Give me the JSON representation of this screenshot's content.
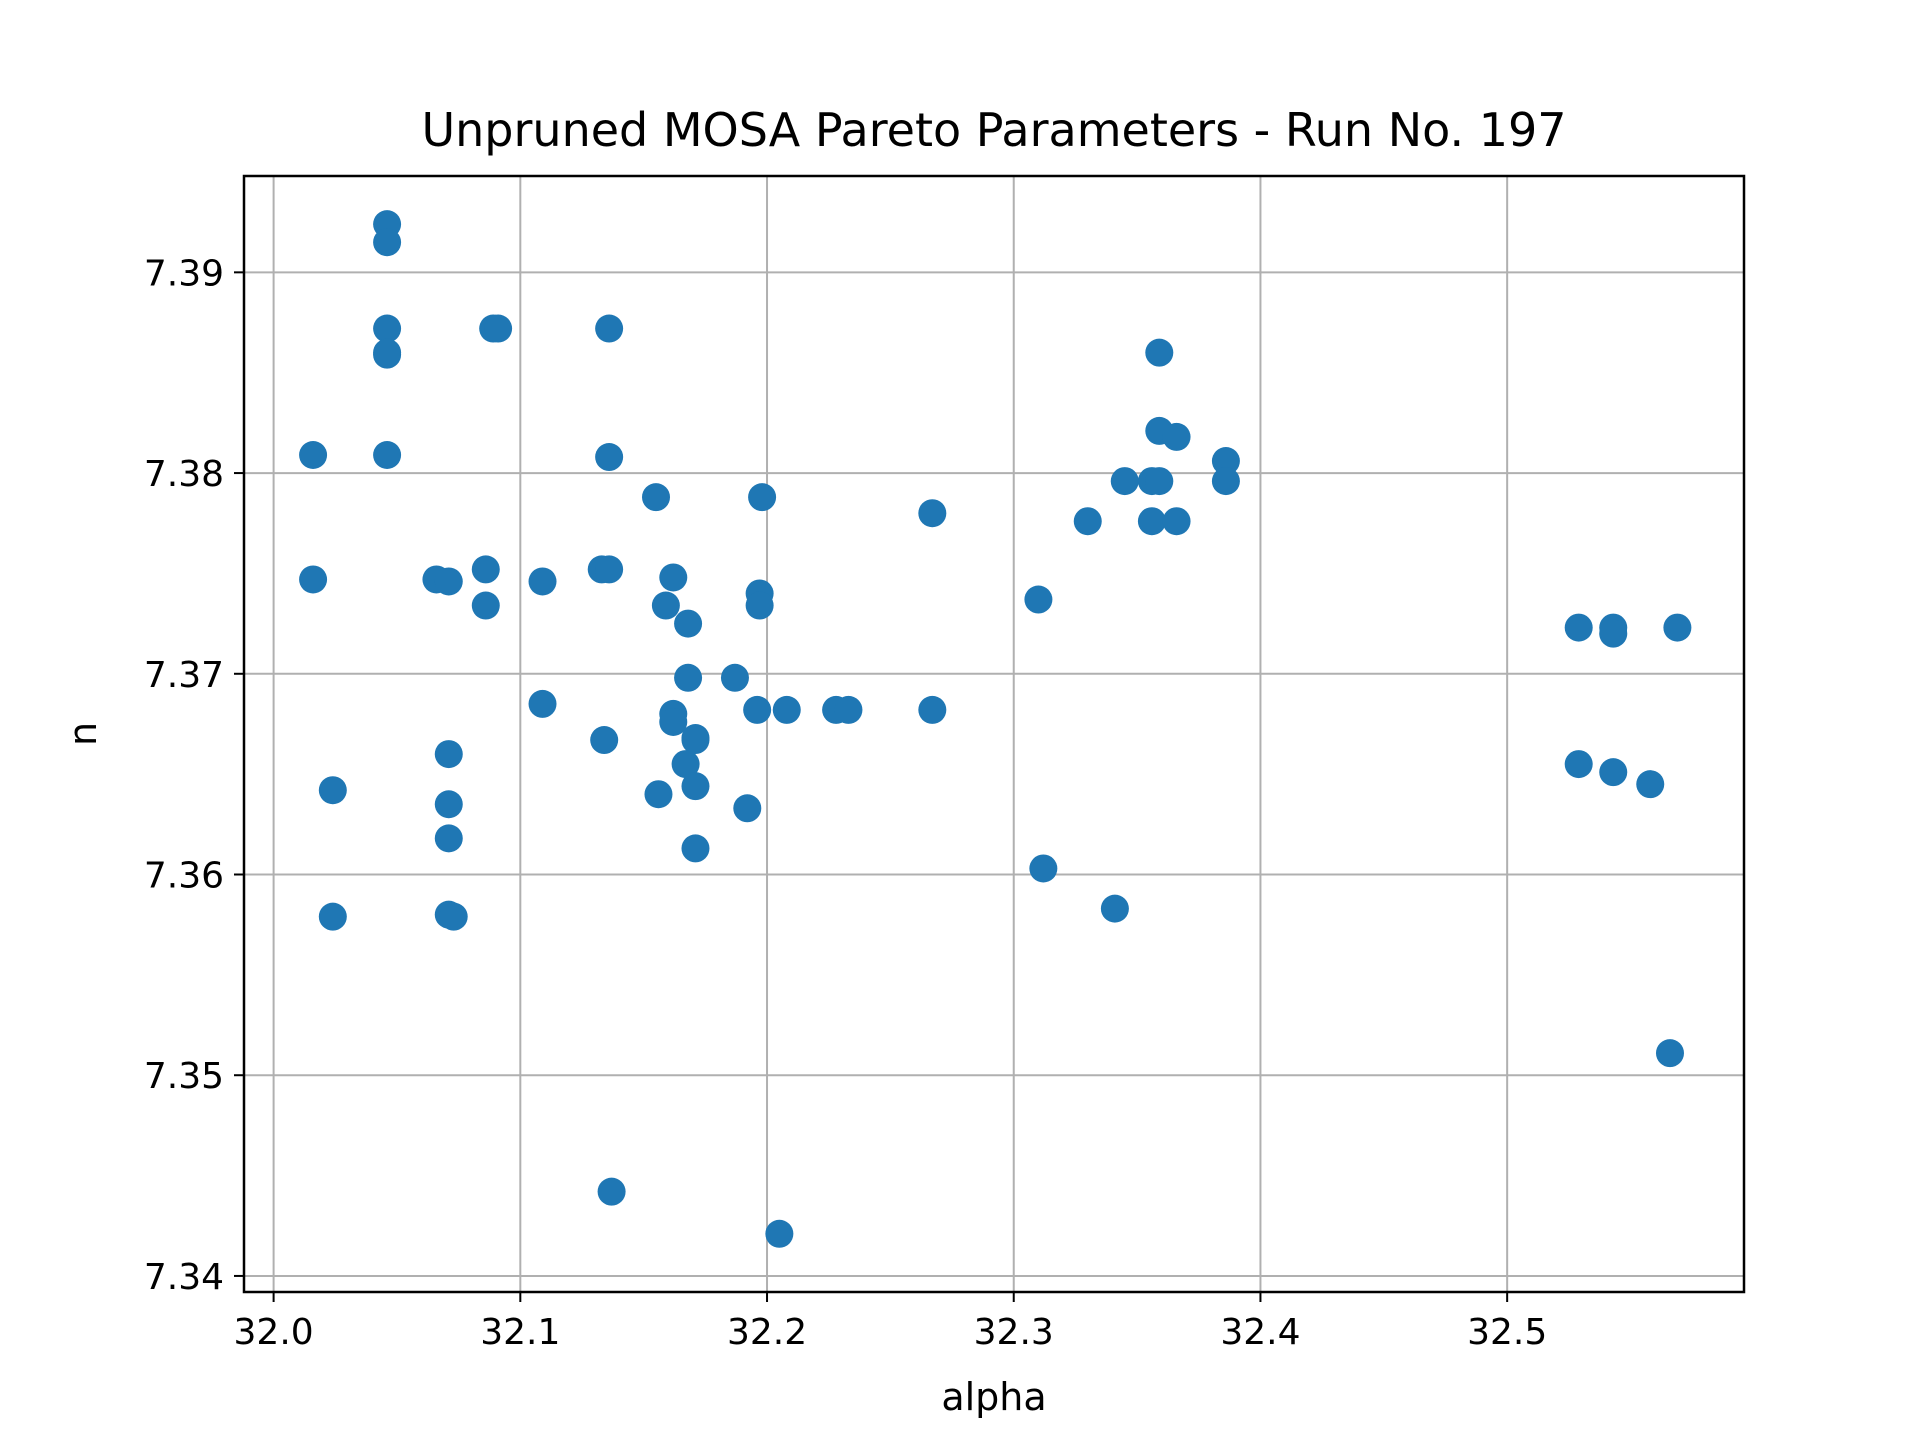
{
  "chart_data": {
    "type": "scatter",
    "title": "Unpruned MOSA Pareto Parameters - Run No. 197",
    "xlabel": "alpha",
    "ylabel": "n",
    "xlim": [
      31.988,
      32.596
    ],
    "ylim": [
      7.3392,
      7.3948
    ],
    "xticks": [
      32.0,
      32.1,
      32.2,
      32.3,
      32.4,
      32.5
    ],
    "xtick_labels": [
      "32.0",
      "32.1",
      "32.2",
      "32.3",
      "32.4",
      "32.5"
    ],
    "yticks": [
      7.34,
      7.35,
      7.36,
      7.37,
      7.38,
      7.39
    ],
    "ytick_labels": [
      "7.34",
      "7.35",
      "7.36",
      "7.37",
      "7.38",
      "7.39"
    ],
    "grid": true,
    "marker_color": "#1f77b4",
    "points": [
      {
        "x": 32.046,
        "y": 7.3924
      },
      {
        "x": 32.046,
        "y": 7.3915
      },
      {
        "x": 32.046,
        "y": 7.3872
      },
      {
        "x": 32.046,
        "y": 7.3859
      },
      {
        "x": 32.046,
        "y": 7.386
      },
      {
        "x": 32.046,
        "y": 7.3809
      },
      {
        "x": 32.016,
        "y": 7.3809
      },
      {
        "x": 32.016,
        "y": 7.3747
      },
      {
        "x": 32.024,
        "y": 7.3642
      },
      {
        "x": 32.024,
        "y": 7.3579
      },
      {
        "x": 32.089,
        "y": 7.3872
      },
      {
        "x": 32.091,
        "y": 7.3872
      },
      {
        "x": 32.136,
        "y": 7.3872
      },
      {
        "x": 32.136,
        "y": 7.3808
      },
      {
        "x": 32.066,
        "y": 7.3747
      },
      {
        "x": 32.071,
        "y": 7.3746
      },
      {
        "x": 32.086,
        "y": 7.3752
      },
      {
        "x": 32.086,
        "y": 7.3734
      },
      {
        "x": 32.109,
        "y": 7.3746
      },
      {
        "x": 32.133,
        "y": 7.3752
      },
      {
        "x": 32.136,
        "y": 7.3752
      },
      {
        "x": 32.071,
        "y": 7.366
      },
      {
        "x": 32.071,
        "y": 7.3635
      },
      {
        "x": 32.071,
        "y": 7.3618
      },
      {
        "x": 32.071,
        "y": 7.358
      },
      {
        "x": 32.073,
        "y": 7.3579
      },
      {
        "x": 32.109,
        "y": 7.3685
      },
      {
        "x": 32.134,
        "y": 7.3667
      },
      {
        "x": 32.137,
        "y": 7.3442
      },
      {
        "x": 32.155,
        "y": 7.3788
      },
      {
        "x": 32.159,
        "y": 7.3734
      },
      {
        "x": 32.162,
        "y": 7.3748
      },
      {
        "x": 32.168,
        "y": 7.3725
      },
      {
        "x": 32.168,
        "y": 7.3698
      },
      {
        "x": 32.162,
        "y": 7.368
      },
      {
        "x": 32.162,
        "y": 7.3676
      },
      {
        "x": 32.171,
        "y": 7.3668
      },
      {
        "x": 32.171,
        "y": 7.3667
      },
      {
        "x": 32.167,
        "y": 7.3655
      },
      {
        "x": 32.156,
        "y": 7.364
      },
      {
        "x": 32.171,
        "y": 7.3644
      },
      {
        "x": 32.171,
        "y": 7.3613
      },
      {
        "x": 32.198,
        "y": 7.3788
      },
      {
        "x": 32.197,
        "y": 7.374
      },
      {
        "x": 32.197,
        "y": 7.3734
      },
      {
        "x": 32.187,
        "y": 7.3698
      },
      {
        "x": 32.196,
        "y": 7.3682
      },
      {
        "x": 32.208,
        "y": 7.3682
      },
      {
        "x": 32.192,
        "y": 7.3633
      },
      {
        "x": 32.205,
        "y": 7.3421
      },
      {
        "x": 32.228,
        "y": 7.3682
      },
      {
        "x": 32.233,
        "y": 7.3682
      },
      {
        "x": 32.267,
        "y": 7.378
      },
      {
        "x": 32.267,
        "y": 7.3682
      },
      {
        "x": 32.31,
        "y": 7.3737
      },
      {
        "x": 32.312,
        "y": 7.3603
      },
      {
        "x": 32.33,
        "y": 7.3776
      },
      {
        "x": 32.341,
        "y": 7.3583
      },
      {
        "x": 32.345,
        "y": 7.3796
      },
      {
        "x": 32.356,
        "y": 7.3796
      },
      {
        "x": 32.359,
        "y": 7.3796
      },
      {
        "x": 32.356,
        "y": 7.3776
      },
      {
        "x": 32.359,
        "y": 7.386
      },
      {
        "x": 32.359,
        "y": 7.3821
      },
      {
        "x": 32.366,
        "y": 7.3818
      },
      {
        "x": 32.366,
        "y": 7.3776
      },
      {
        "x": 32.386,
        "y": 7.3806
      },
      {
        "x": 32.386,
        "y": 7.3796
      },
      {
        "x": 32.529,
        "y": 7.3723
      },
      {
        "x": 32.543,
        "y": 7.3723
      },
      {
        "x": 32.543,
        "y": 7.372
      },
      {
        "x": 32.569,
        "y": 7.3723
      },
      {
        "x": 32.529,
        "y": 7.3655
      },
      {
        "x": 32.543,
        "y": 7.3651
      },
      {
        "x": 32.558,
        "y": 7.3645
      },
      {
        "x": 32.566,
        "y": 7.3511
      }
    ]
  }
}
